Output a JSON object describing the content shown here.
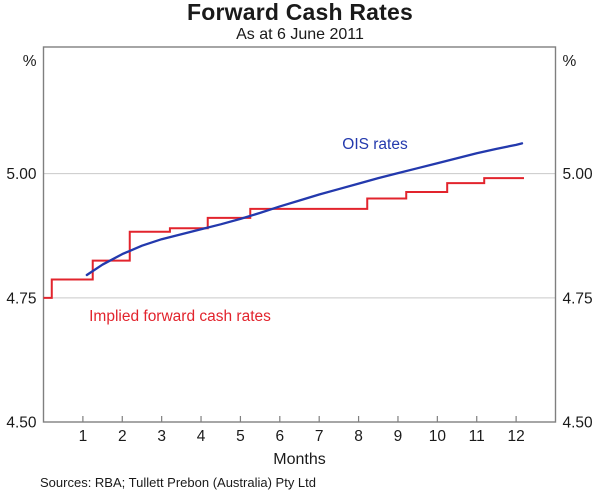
{
  "header": {
    "title": "Forward Cash Rates",
    "subtitle": "As at 6 June 2011"
  },
  "footer": {
    "sources": "Sources: RBA; Tullett Prebon (Australia) Pty Ltd"
  },
  "chart_data": {
    "type": "line",
    "title": "Forward Cash Rates",
    "subtitle": "As at 6 June 2011",
    "xlabel": "Months",
    "ylabel": "%",
    "axis": {
      "x_min": 0,
      "x_max": 13,
      "y_min": 4.5,
      "y_max": 5.255,
      "grid": true,
      "legend": "in-plot text annotations"
    },
    "x_ticks": [
      1,
      2,
      3,
      4,
      5,
      6,
      7,
      8,
      9,
      10,
      11,
      12
    ],
    "y_ticks": [
      {
        "label": "%",
        "value": 5.228,
        "grid": false,
        "unit": true
      },
      {
        "label": "5.00",
        "value": 5.0,
        "grid": true,
        "unit": false
      },
      {
        "label": "4.75",
        "value": 4.75,
        "grid": true,
        "unit": false
      },
      {
        "label": "4.50",
        "value": 4.5,
        "grid": false,
        "unit": false
      }
    ],
    "colors": {
      "frame": "#7f7f7f",
      "grid": "#c9c9c9",
      "text": "#1a1a1a",
      "ois_blue": "#2339ad",
      "implied_red": "#e2242d"
    },
    "series": [
      {
        "name": "OIS rates",
        "style": "smooth-line",
        "color": "#2339ad",
        "points": [
          [
            1.1,
            4.796
          ],
          [
            1.5,
            4.817
          ],
          [
            2.0,
            4.838
          ],
          [
            2.5,
            4.855
          ],
          [
            3.0,
            4.868
          ],
          [
            3.5,
            4.878
          ],
          [
            4.0,
            4.888
          ],
          [
            4.5,
            4.898
          ],
          [
            5.0,
            4.909
          ],
          [
            5.5,
            4.921
          ],
          [
            6.0,
            4.934
          ],
          [
            6.5,
            4.946
          ],
          [
            7.0,
            4.958
          ],
          [
            7.5,
            4.969
          ],
          [
            8.0,
            4.98
          ],
          [
            8.5,
            4.991
          ],
          [
            9.0,
            5.001
          ],
          [
            9.5,
            5.011
          ],
          [
            10.0,
            5.021
          ],
          [
            10.5,
            5.031
          ],
          [
            11.0,
            5.041
          ],
          [
            11.5,
            5.05
          ],
          [
            12.0,
            5.058
          ],
          [
            12.15,
            5.061
          ]
        ]
      },
      {
        "name": "Implied forward cash rates",
        "style": "step-line",
        "color": "#e2242d",
        "steps": [
          {
            "from": 0.0,
            "to": 0.21,
            "rate": 4.75
          },
          {
            "from": 0.21,
            "to": 1.25,
            "rate": 4.787
          },
          {
            "from": 1.25,
            "to": 2.19,
            "rate": 4.825
          },
          {
            "from": 2.19,
            "to": 3.21,
            "rate": 4.883
          },
          {
            "from": 3.21,
            "to": 4.17,
            "rate": 4.89
          },
          {
            "from": 4.17,
            "to": 5.25,
            "rate": 4.911
          },
          {
            "from": 5.25,
            "to": 8.22,
            "rate": 4.929
          },
          {
            "from": 8.22,
            "to": 9.21,
            "rate": 4.95
          },
          {
            "from": 9.21,
            "to": 10.25,
            "rate": 4.963
          },
          {
            "from": 10.25,
            "to": 11.19,
            "rate": 4.981
          },
          {
            "from": 11.19,
            "to": 12.2,
            "rate": 4.991
          }
        ]
      }
    ],
    "annotations": [
      {
        "text": "OIS rates",
        "series": "OIS rates",
        "color": "#2339ad",
        "x_month": 8.42,
        "y_rate": 5.057
      },
      {
        "text": "Implied forward cash rates",
        "series": "Implied forward cash rates",
        "color": "#e2242d",
        "x_month": 3.45,
        "y_rate": 4.712
      }
    ]
  }
}
